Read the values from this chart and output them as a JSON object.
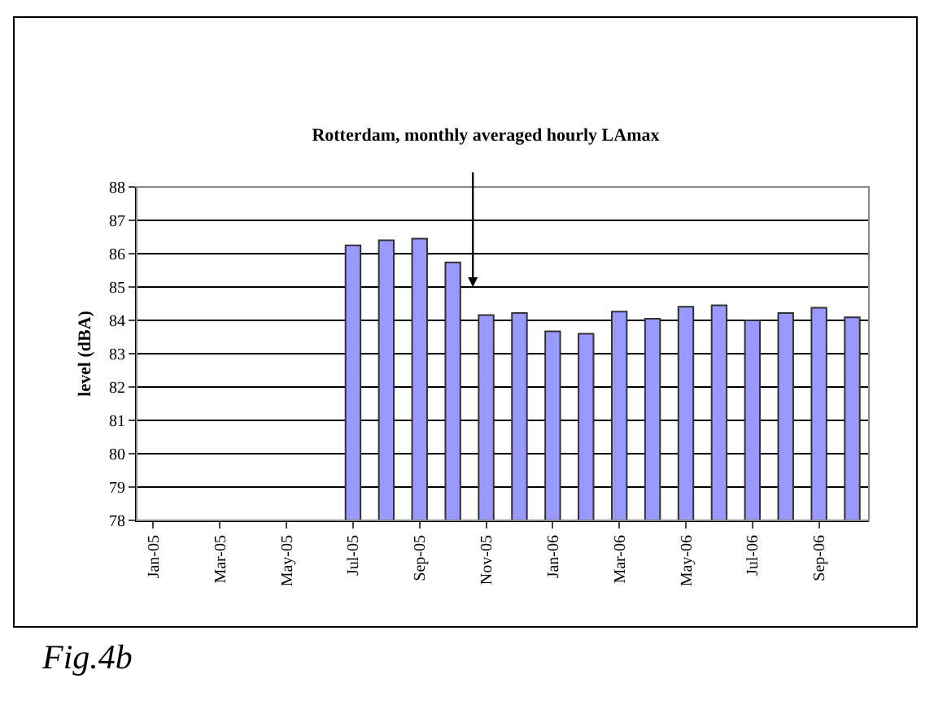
{
  "chart_data": {
    "type": "bar",
    "title": "Rotterdam, monthly averaged hourly LAmax",
    "ylabel": "level (dBA)",
    "categories": [
      "Jan-05",
      null,
      "Mar-05",
      null,
      "May-05",
      null,
      "Jul-05",
      null,
      "Sep-05",
      null,
      "Nov-05",
      null,
      "Jan-06",
      null,
      "Mar-06",
      null,
      "May-06",
      null,
      "Jul-06",
      null,
      "Sep-06",
      null
    ],
    "values": [
      null,
      null,
      null,
      null,
      null,
      null,
      86.25,
      86.4,
      86.45,
      85.74,
      84.16,
      84.22,
      83.67,
      83.6,
      84.26,
      84.05,
      84.41,
      84.45,
      84.0,
      84.22,
      84.38,
      84.09
    ],
    "color": "#9999ff",
    "ylim": [
      78,
      88
    ],
    "yticks": [
      78,
      79,
      80,
      81,
      82,
      83,
      84,
      85,
      86,
      87,
      88
    ],
    "grid": "y",
    "annotations": [
      "Fig.4b"
    ]
  }
}
